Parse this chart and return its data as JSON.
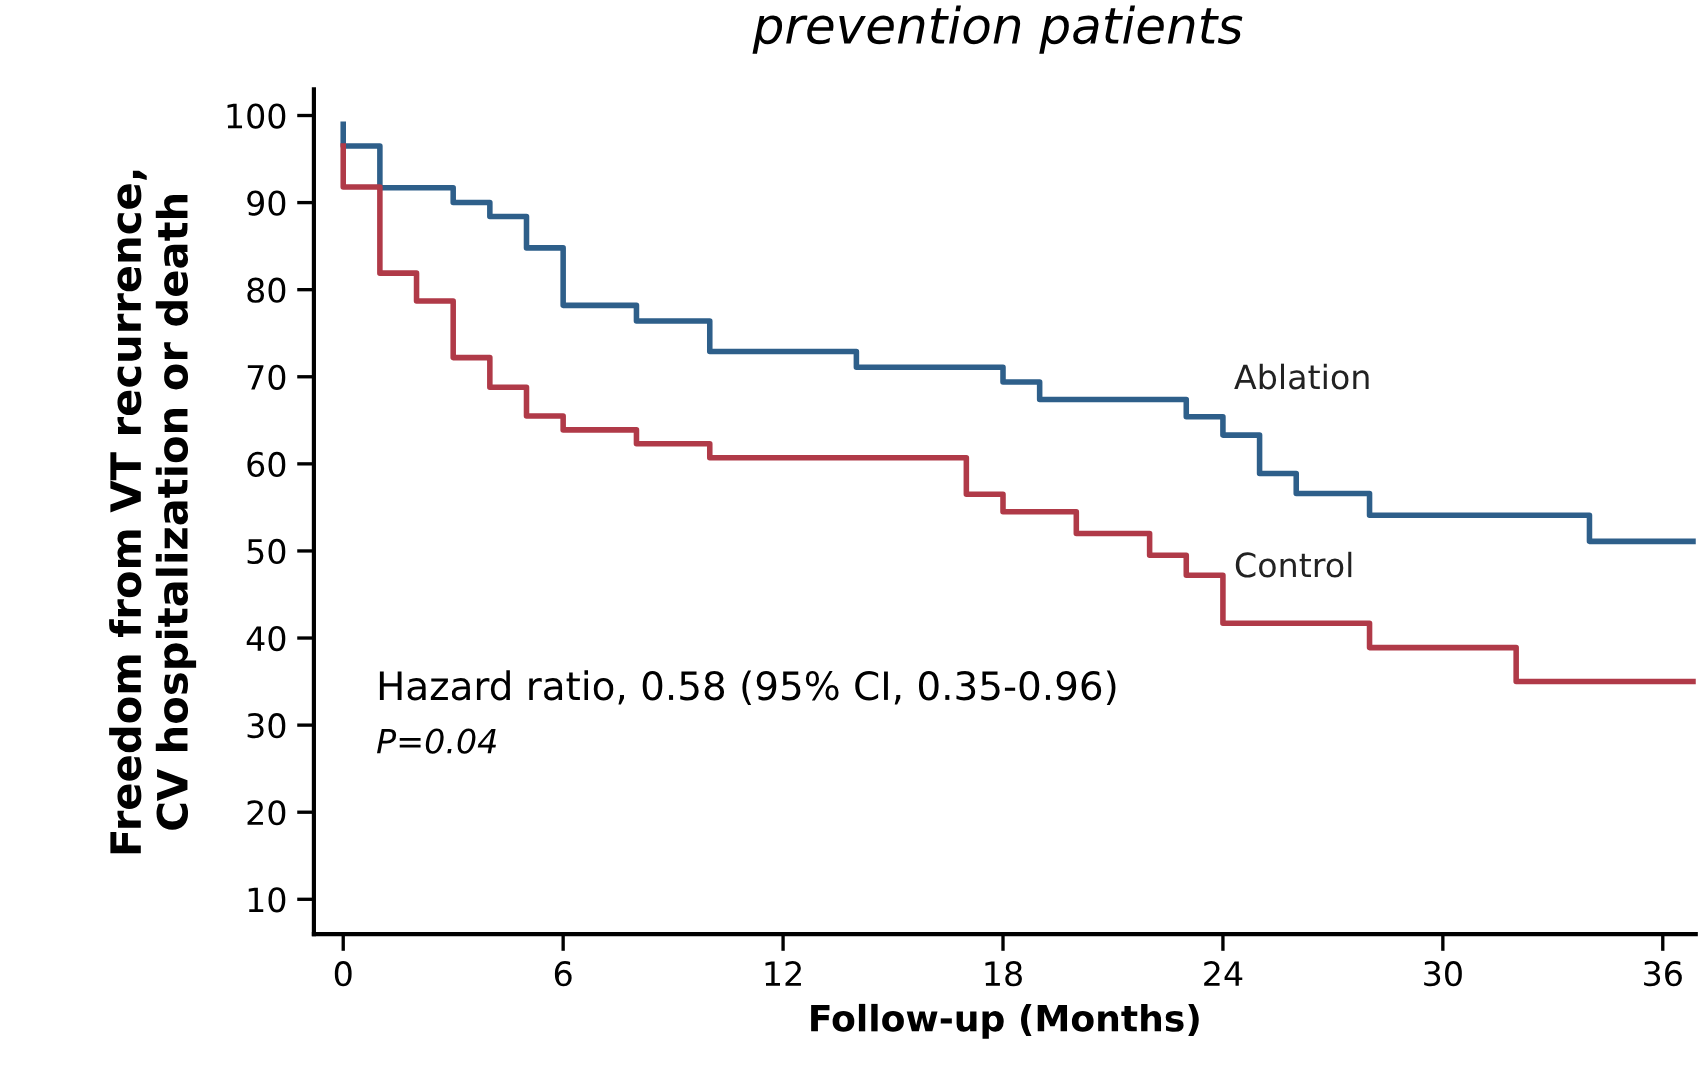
{
  "chart_data": {
    "type": "step",
    "title": "prevention patients",
    "xlabel": "Follow-up (Months)",
    "ylabel": "Freedom from VT recurrence,\nCV hospitalization or death",
    "xlim": [
      -0.8,
      36.9
    ],
    "ylim": [
      6,
      103
    ],
    "xticks": [
      0,
      6,
      12,
      18,
      24,
      30,
      36
    ],
    "yticks": [
      10,
      20,
      30,
      40,
      50,
      60,
      70,
      80,
      90,
      100
    ],
    "grid": false,
    "legend": false,
    "line_style": "solid",
    "marker": "none",
    "series": [
      {
        "name": "Ablation",
        "color": "#2e5f8a",
        "x": [
          0,
          0,
          1,
          3,
          4,
          5,
          6,
          8,
          10,
          14,
          18,
          19,
          23,
          24,
          25,
          26,
          28,
          34,
          36.9
        ],
        "values": [
          99,
          96.5,
          91.7,
          90,
          88.4,
          84.8,
          78.2,
          76.4,
          72.9,
          71.1,
          69.4,
          67.4,
          65.4,
          63.3,
          58.9,
          56.6,
          54.1,
          51.1,
          51.1
        ]
      },
      {
        "name": "Control",
        "color": "#b03a48",
        "x": [
          0,
          0,
          1,
          2,
          3,
          4,
          5,
          6,
          8,
          10,
          17,
          18,
          20,
          22,
          23,
          24,
          28,
          32,
          36.9
        ],
        "values": [
          96.5,
          91.8,
          81.9,
          78.7,
          72.2,
          68.8,
          65.5,
          63.9,
          62.3,
          60.7,
          56.5,
          54.5,
          52,
          49.5,
          47.2,
          41.7,
          38.9,
          35,
          35
        ]
      }
    ],
    "annotations": [
      "Hazard ratio, 0.58 (95% CI, 0.35-0.96)",
      "P=0.04"
    ]
  }
}
